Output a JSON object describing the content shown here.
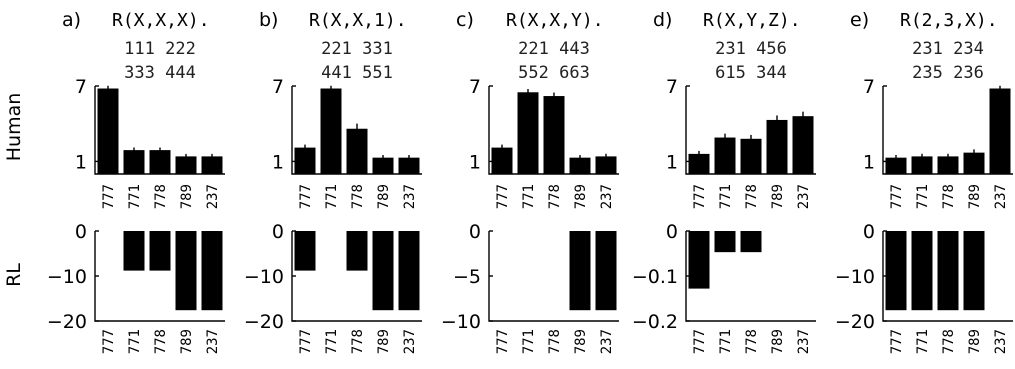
{
  "rows": [
    {
      "label": "Human"
    },
    {
      "label": "RL"
    }
  ],
  "chart_data": [
    {
      "panel": "a)",
      "title": "R(X,X,X).",
      "examples": [
        "111 222",
        "333 444"
      ],
      "row": "Human",
      "type": "bar",
      "categories": [
        "777",
        "771",
        "778",
        "789",
        "237"
      ],
      "values": [
        6.8,
        1.9,
        1.9,
        1.4,
        1.4
      ],
      "errors": [
        0.06,
        0.05,
        0.05,
        0.04,
        0.04
      ],
      "ylim": [
        0,
        7
      ],
      "yticks": [
        1,
        7
      ]
    },
    {
      "panel": "b)",
      "title": "R(X,X,1).",
      "examples": [
        "221 331",
        "441 551"
      ],
      "row": "Human",
      "type": "bar",
      "categories": [
        "777",
        "771",
        "778",
        "789",
        "237"
      ],
      "values": [
        2.1,
        6.8,
        3.6,
        1.3,
        1.3
      ],
      "errors": [
        0.08,
        0.06,
        0.25,
        0.05,
        0.05
      ],
      "ylim": [
        0,
        7
      ],
      "yticks": [
        1,
        7
      ]
    },
    {
      "panel": "c)",
      "title": "R(X,X,Y).",
      "examples": [
        "221 443",
        "552 663"
      ],
      "row": "Human",
      "type": "bar",
      "categories": [
        "777",
        "771",
        "778",
        "789",
        "237"
      ],
      "values": [
        2.1,
        6.5,
        6.2,
        1.3,
        1.4
      ],
      "errors": [
        0.08,
        0.1,
        0.12,
        0.05,
        0.05
      ],
      "ylim": [
        0,
        7
      ],
      "yticks": [
        1,
        7
      ]
    },
    {
      "panel": "d)",
      "title": "R(X,Y,Z).",
      "examples": [
        "231 456",
        "615 344"
      ],
      "row": "Human",
      "type": "bar",
      "categories": [
        "777",
        "771",
        "778",
        "789",
        "237"
      ],
      "values": [
        1.6,
        2.9,
        2.8,
        4.3,
        4.6
      ],
      "errors": [
        0.08,
        0.15,
        0.15,
        0.2,
        0.2
      ],
      "ylim": [
        0,
        7
      ],
      "yticks": [
        1,
        7
      ]
    },
    {
      "panel": "e)",
      "title": "R(2,3,X).",
      "examples": [
        "231 234",
        "235 236"
      ],
      "row": "Human",
      "type": "bar",
      "categories": [
        "777",
        "771",
        "778",
        "789",
        "237"
      ],
      "values": [
        1.3,
        1.4,
        1.4,
        1.7,
        6.8
      ],
      "errors": [
        0.05,
        0.05,
        0.05,
        0.1,
        0.06
      ],
      "ylim": [
        0,
        7
      ],
      "yticks": [
        1,
        7
      ]
    },
    {
      "panel": "a)",
      "row": "RL",
      "type": "bar",
      "categories": [
        "777",
        "771",
        "778",
        "789",
        "237"
      ],
      "values": [
        0,
        -8.8,
        -8.8,
        -17.6,
        -17.6
      ],
      "ylim": [
        -20,
        0
      ],
      "yticks": [
        -20,
        -10,
        0
      ],
      "ytick_labels": [
        "−20",
        "−10",
        "0"
      ]
    },
    {
      "panel": "b)",
      "row": "RL",
      "type": "bar",
      "categories": [
        "777",
        "771",
        "778",
        "789",
        "237"
      ],
      "values": [
        -8.8,
        0,
        -8.8,
        -17.6,
        -17.6
      ],
      "ylim": [
        -20,
        0
      ],
      "yticks": [
        -20,
        -10,
        0
      ],
      "ytick_labels": [
        "−20",
        "−10",
        "0"
      ]
    },
    {
      "panel": "c)",
      "row": "RL",
      "type": "bar",
      "categories": [
        "777",
        "771",
        "778",
        "789",
        "237"
      ],
      "values": [
        0,
        0,
        0,
        -8.8,
        -8.8
      ],
      "ylim": [
        -10,
        0
      ],
      "yticks": [
        -10,
        -5,
        0
      ],
      "ytick_labels": [
        "−10",
        "−5",
        "0"
      ]
    },
    {
      "panel": "d)",
      "row": "RL",
      "type": "bar",
      "categories": [
        "777",
        "771",
        "778",
        "789",
        "237"
      ],
      "values": [
        -0.128,
        -0.047,
        -0.047,
        0,
        0
      ],
      "ylim": [
        -0.2,
        0
      ],
      "yticks": [
        -0.2,
        -0.1,
        0
      ],
      "ytick_labels": [
        "−0.2",
        "−0.1",
        "0"
      ]
    },
    {
      "panel": "e)",
      "row": "RL",
      "type": "bar",
      "categories": [
        "777",
        "771",
        "778",
        "789",
        "237"
      ],
      "values": [
        -17.6,
        -17.6,
        -17.6,
        -17.6,
        0
      ],
      "ylim": [
        -20,
        0
      ],
      "yticks": [
        -20,
        -10,
        0
      ],
      "ytick_labels": [
        "−20",
        "−10",
        "0"
      ]
    }
  ]
}
